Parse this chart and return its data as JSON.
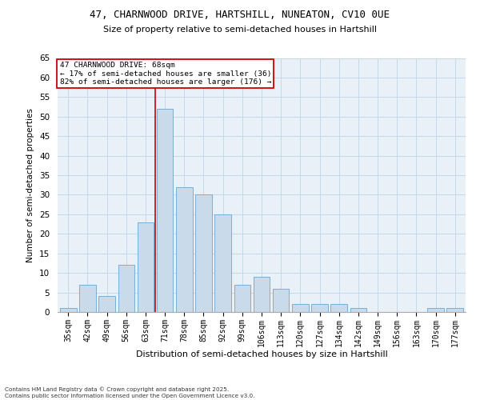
{
  "title1": "47, CHARNWOOD DRIVE, HARTSHILL, NUNEATON, CV10 0UE",
  "title2": "Size of property relative to semi-detached houses in Hartshill",
  "xlabel": "Distribution of semi-detached houses by size in Hartshill",
  "ylabel": "Number of semi-detached properties",
  "footer1": "Contains HM Land Registry data © Crown copyright and database right 2025.",
  "footer2": "Contains public sector information licensed under the Open Government Licence v3.0.",
  "categories": [
    "35sqm",
    "42sqm",
    "49sqm",
    "56sqm",
    "63sqm",
    "71sqm",
    "78sqm",
    "85sqm",
    "92sqm",
    "99sqm",
    "106sqm",
    "113sqm",
    "120sqm",
    "127sqm",
    "134sqm",
    "142sqm",
    "149sqm",
    "156sqm",
    "163sqm",
    "170sqm",
    "177sqm"
  ],
  "values": [
    1,
    7,
    4,
    12,
    23,
    52,
    32,
    30,
    25,
    7,
    9,
    6,
    2,
    2,
    2,
    1,
    0,
    0,
    0,
    1,
    1
  ],
  "bar_color": "#c9daea",
  "bar_edge_color": "#7badd4",
  "annotation_title": "47 CHARNWOOD DRIVE: 68sqm",
  "annotation_line1": "← 17% of semi-detached houses are smaller (36)",
  "annotation_line2": "82% of semi-detached houses are larger (176) →",
  "vline_color": "#cc0000",
  "annotation_box_color": "#cc0000",
  "ylim": [
    0,
    65
  ],
  "yticks": [
    0,
    5,
    10,
    15,
    20,
    25,
    30,
    35,
    40,
    45,
    50,
    55,
    60,
    65
  ],
  "grid_color": "#c8d8e8",
  "bg_color": "#e8f0f8"
}
